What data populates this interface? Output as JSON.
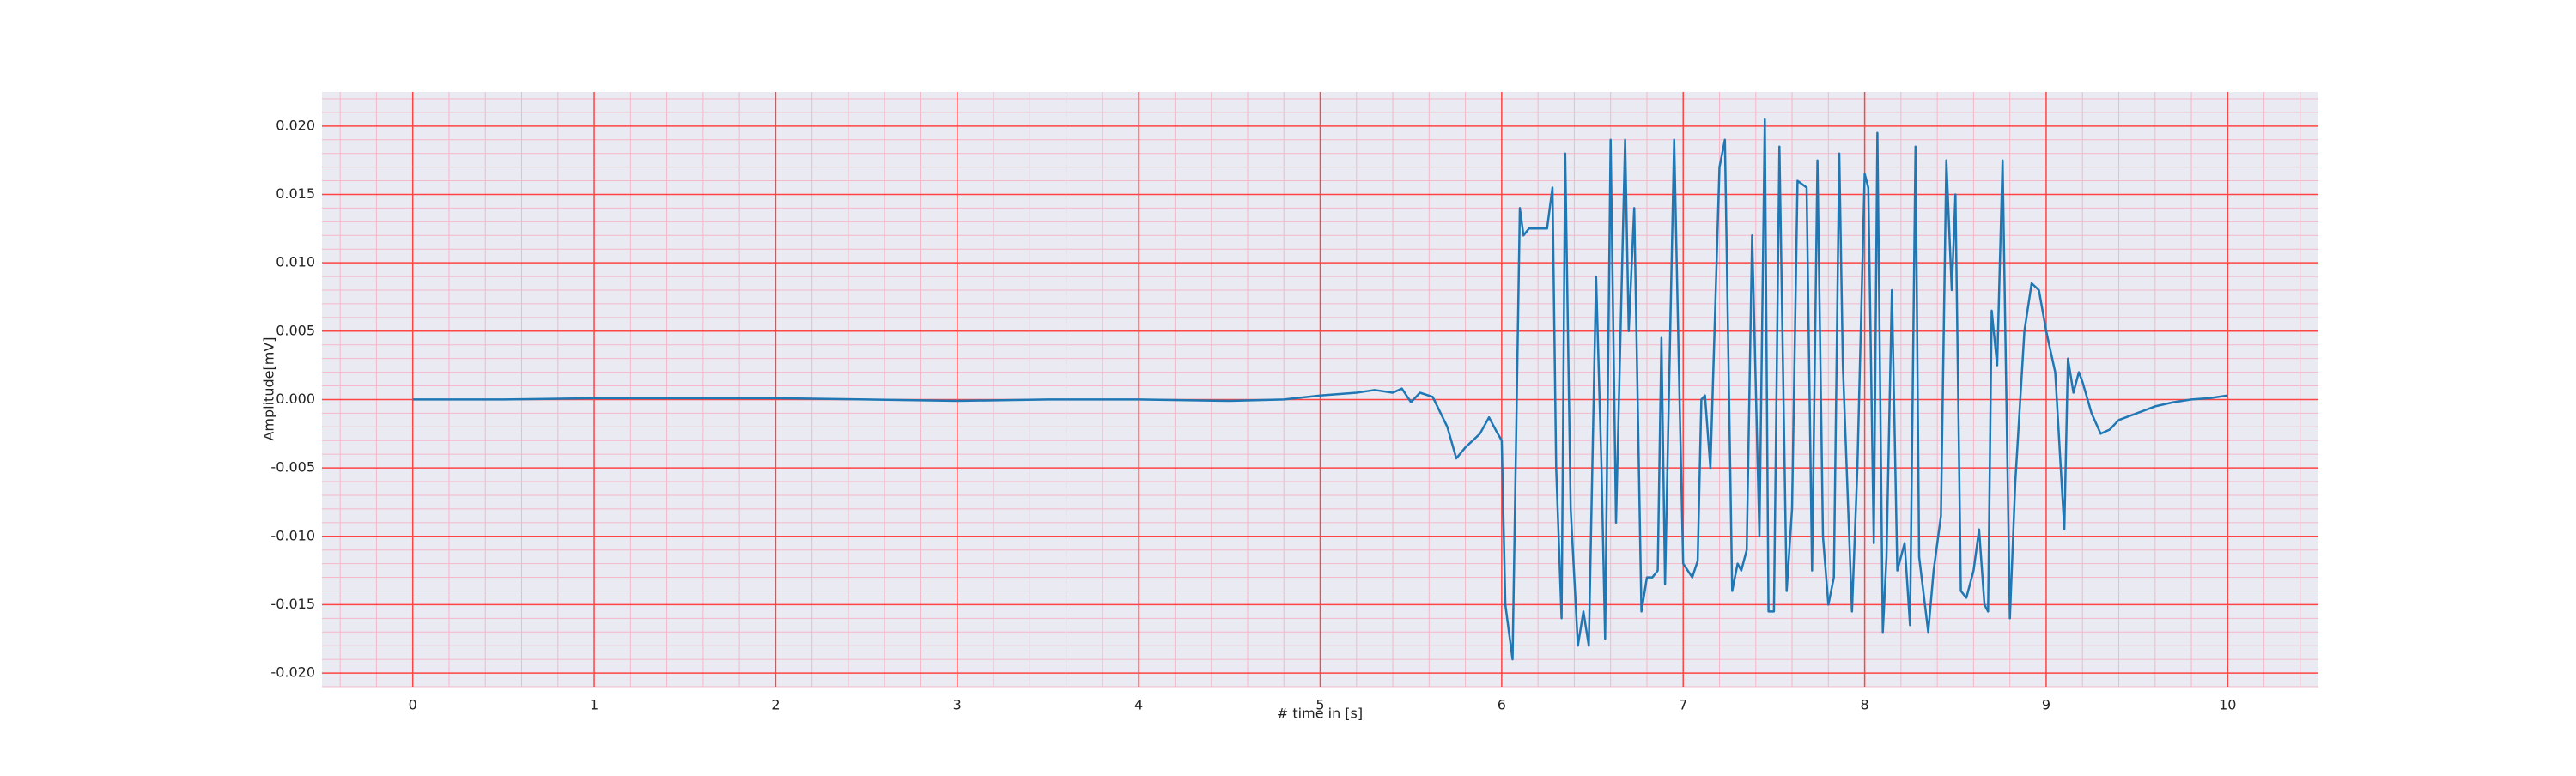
{
  "chart_data": {
    "type": "line",
    "xlabel": "# time in [s]",
    "ylabel": "Amplitude[mV]",
    "x": [
      0,
      0.5,
      1,
      1.5,
      2,
      2.5,
      3,
      3.5,
      4,
      4.5,
      4.8,
      5,
      5.2,
      5.3,
      5.4,
      5.45,
      5.5,
      5.55,
      5.62,
      5.7,
      5.75,
      5.8,
      5.88,
      5.93,
      5.97,
      6.0,
      6.02,
      6.06,
      6.1,
      6.12,
      6.15,
      6.2,
      6.25,
      6.28,
      6.3,
      6.33,
      6.35,
      6.38,
      6.42,
      6.45,
      6.48,
      6.52,
      6.55,
      6.57,
      6.6,
      6.63,
      6.68,
      6.7,
      6.73,
      6.77,
      6.8,
      6.83,
      6.86,
      6.88,
      6.9,
      6.95,
      6.98,
      7.0,
      7.05,
      7.08,
      7.1,
      7.12,
      7.15,
      7.2,
      7.23,
      7.27,
      7.3,
      7.32,
      7.35,
      7.38,
      7.42,
      7.45,
      7.47,
      7.5,
      7.53,
      7.57,
      7.6,
      7.63,
      7.68,
      7.71,
      7.74,
      7.77,
      7.8,
      7.83,
      7.86,
      7.88,
      7.93,
      7.96,
      8.0,
      8.02,
      8.05,
      8.07,
      8.1,
      8.12,
      8.15,
      8.18,
      8.22,
      8.25,
      8.28,
      8.3,
      8.35,
      8.38,
      8.42,
      8.45,
      8.48,
      8.5,
      8.53,
      8.56,
      8.6,
      8.63,
      8.66,
      8.68,
      8.7,
      8.73,
      8.76,
      8.8,
      8.83,
      8.88,
      8.92,
      8.96,
      9.0,
      9.05,
      9.1,
      9.12,
      9.15,
      9.18,
      9.2,
      9.25,
      9.3,
      9.35,
      9.4,
      9.5,
      9.6,
      9.7,
      9.8,
      9.9,
      10.0
    ],
    "values": [
      0,
      0,
      0.0001,
      0.0001,
      0.0001,
      0,
      -0.0001,
      0,
      0,
      -0.0001,
      0,
      0.0003,
      0.0005,
      0.0007,
      0.0005,
      0.0008,
      -0.0002,
      0.0005,
      0.0002,
      -0.002,
      -0.0043,
      -0.0035,
      -0.0025,
      -0.0013,
      -0.0023,
      -0.003,
      -0.015,
      -0.019,
      0.014,
      0.012,
      0.0125,
      0.0125,
      0.0125,
      0.0155,
      -0.005,
      -0.016,
      0.018,
      -0.008,
      -0.018,
      -0.0155,
      -0.018,
      0.009,
      -0.005,
      -0.0175,
      0.019,
      -0.009,
      0.019,
      0.005,
      0.014,
      -0.0155,
      -0.013,
      -0.013,
      -0.0125,
      0.0045,
      -0.0135,
      0.019,
      0,
      -0.012,
      -0.013,
      -0.0118,
      0,
      0.0003,
      -0.005,
      0.017,
      0.019,
      -0.014,
      -0.012,
      -0.0125,
      -0.011,
      0.012,
      -0.01,
      0.0205,
      -0.0155,
      -0.0155,
      0.0185,
      -0.014,
      -0.008,
      0.016,
      0.0155,
      -0.0125,
      0.0175,
      -0.01,
      -0.015,
      -0.013,
      0.018,
      0.0025,
      -0.0155,
      -0.005,
      0.0165,
      0.0155,
      -0.0105,
      0.0195,
      -0.017,
      -0.0115,
      0.008,
      -0.0125,
      -0.0105,
      -0.0165,
      0.0185,
      -0.0115,
      -0.017,
      -0.0125,
      -0.0085,
      0.0175,
      0.008,
      0.015,
      -0.014,
      -0.0145,
      -0.0125,
      -0.0095,
      -0.015,
      -0.0155,
      0.0065,
      0.0025,
      0.0175,
      -0.016,
      -0.006,
      0.005,
      0.0085,
      0.008,
      0.005,
      0.002,
      -0.0095,
      0.003,
      0.0005,
      0.002,
      0.0013,
      -0.001,
      -0.0025,
      -0.0022,
      -0.0015,
      -0.001,
      -0.0005,
      -0.0002,
      0,
      0.0001,
      0.0003
    ],
    "color": "#1f77b4",
    "xlim": [
      -0.5,
      10.5
    ],
    "xticks": [
      0,
      1,
      2,
      3,
      4,
      5,
      6,
      7,
      8,
      9,
      10
    ],
    "ylim": [
      -0.021,
      0.0225
    ],
    "yticks": [
      {
        "value": -0.02,
        "label": "-0.020"
      },
      {
        "value": -0.015,
        "label": "-0.015"
      },
      {
        "value": -0.01,
        "label": "-0.010"
      },
      {
        "value": -0.005,
        "label": "-0.005"
      },
      {
        "value": 0,
        "label": "0.000"
      },
      {
        "value": 0.005,
        "label": "0.005"
      },
      {
        "value": 0.01,
        "label": "0.010"
      },
      {
        "value": 0.015,
        "label": "0.015"
      },
      {
        "value": 0.02,
        "label": "0.020"
      }
    ],
    "grid": true,
    "grid_color": "#ff4444",
    "minor_grid": true,
    "minor_grid_color": "#f4b8c8",
    "minor_divisions": 5,
    "background": "#eaeaf2"
  }
}
